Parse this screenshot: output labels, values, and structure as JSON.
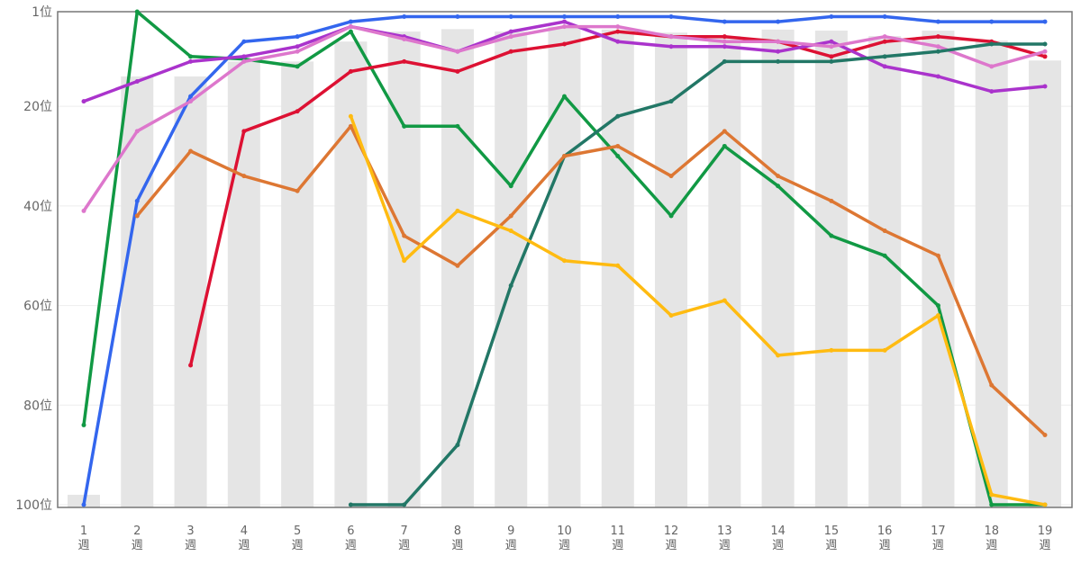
{
  "chart_data": {
    "type": "line",
    "title": "",
    "xlabel": "",
    "ylabel": "",
    "y_reversed": true,
    "ylim": [
      1,
      100
    ],
    "grid": true,
    "legend": "none",
    "y_ticks": [
      {
        "value": 1,
        "label": "1位"
      },
      {
        "value": 20,
        "label": "20位"
      },
      {
        "value": 40,
        "label": "40位"
      },
      {
        "value": 60,
        "label": "60位"
      },
      {
        "value": 80,
        "label": "80位"
      },
      {
        "value": 100,
        "label": "100位"
      }
    ],
    "x": [
      1,
      2,
      3,
      4,
      5,
      6,
      7,
      8,
      9,
      10,
      11,
      12,
      13,
      14,
      15,
      16,
      17,
      18,
      19
    ],
    "x_unit": "週",
    "bars": {
      "name": "background",
      "color": "#e5e5e5",
      "values": [
        98,
        14,
        14,
        11,
        11,
        7,
        5,
        4.5,
        5,
        4,
        4.6,
        5.2,
        5.9,
        4.6,
        4.8,
        5.9,
        4.8,
        6.8,
        10.8
      ]
    },
    "series": [
      {
        "name": "blue",
        "color": "#3366ee",
        "values": [
          100,
          39,
          18,
          7,
          6,
          3,
          2,
          2,
          2,
          2,
          2,
          2,
          3,
          3,
          2,
          2,
          3,
          3,
          3
        ]
      },
      {
        "name": "green",
        "color": "#119944",
        "values": [
          84,
          1,
          10,
          10.5,
          12,
          5,
          24,
          24,
          36,
          18,
          30,
          42,
          28,
          36,
          46,
          50,
          60,
          100,
          100
        ]
      },
      {
        "name": "red",
        "color": "#dd1133",
        "values": [
          null,
          null,
          72,
          25,
          21,
          13,
          11,
          13,
          9,
          7.5,
          5,
          6,
          6,
          7,
          10,
          7,
          6,
          7,
          10
        ]
      },
      {
        "name": "purple",
        "color": "#aa33cc",
        "values": [
          19,
          15,
          11,
          10,
          8,
          4,
          6,
          9,
          5,
          3,
          7,
          8,
          8,
          9,
          7,
          12,
          14,
          17,
          16
        ]
      },
      {
        "name": "pink",
        "color": "#dd77cc",
        "values": [
          41,
          25,
          19,
          11,
          9,
          4,
          6.5,
          9,
          6,
          4,
          4,
          6,
          7,
          7,
          8,
          6,
          8,
          12,
          9
        ]
      },
      {
        "name": "teal",
        "color": "#227766",
        "values": [
          null,
          null,
          null,
          null,
          null,
          100,
          100,
          88,
          56,
          30,
          22,
          19,
          11,
          11,
          11,
          10,
          9,
          7.5,
          7.5
        ]
      },
      {
        "name": "orange",
        "color": "#dd7733",
        "values": [
          null,
          42,
          29,
          34,
          37,
          24,
          46,
          52,
          42,
          30,
          28,
          34,
          25,
          34,
          39,
          45,
          50,
          76,
          86
        ]
      },
      {
        "name": "yellow",
        "color": "#ffbb11",
        "values": [
          null,
          null,
          null,
          null,
          null,
          22,
          51,
          41,
          45,
          51,
          52,
          62,
          59,
          70,
          69,
          69,
          62,
          98,
          100
        ]
      }
    ]
  }
}
